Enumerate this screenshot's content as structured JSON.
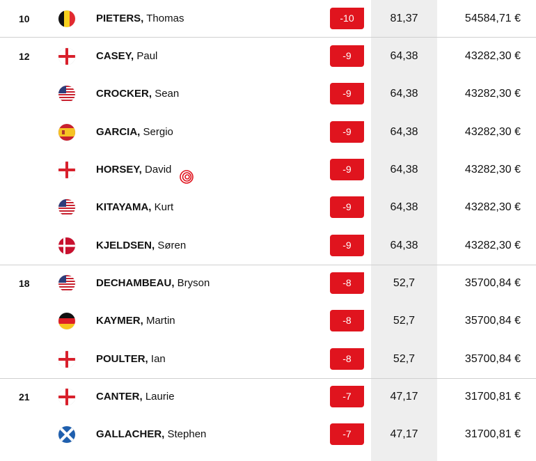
{
  "leaderboard": {
    "rows": [
      {
        "pos": "10",
        "flag": "belgium-flag-icon",
        "last": "PIETERS,",
        "first": "Thomas",
        "score": "-10",
        "points": "81,37",
        "money": "54584,71 €"
      },
      {
        "pos": "12",
        "flag": "england-flag-icon",
        "last": "CASEY,",
        "first": "Paul",
        "score": "-9",
        "points": "64,38",
        "money": "43282,30 €"
      },
      {
        "pos": "",
        "flag": "usa-flag-icon",
        "last": "CROCKER,",
        "first": "Sean",
        "score": "-9",
        "points": "64,38",
        "money": "43282,30 €"
      },
      {
        "pos": "",
        "flag": "spain-flag-icon",
        "last": "GARCIA,",
        "first": "Sergio",
        "score": "-9",
        "points": "64,38",
        "money": "43282,30 €"
      },
      {
        "pos": "",
        "flag": "england-flag-icon",
        "last": "HORSEY,",
        "first": "David",
        "score": "-9",
        "points": "64,38",
        "money": "43282,30 €",
        "badge": "target-swirl-icon"
      },
      {
        "pos": "",
        "flag": "usa-flag-icon",
        "last": "KITAYAMA,",
        "first": "Kurt",
        "score": "-9",
        "points": "64,38",
        "money": "43282,30 €"
      },
      {
        "pos": "",
        "flag": "denmark-flag-icon",
        "last": "KJELDSEN,",
        "first": "Søren",
        "score": "-9",
        "points": "64,38",
        "money": "43282,30 €"
      },
      {
        "pos": "18",
        "flag": "usa-flag-icon",
        "last": "DECHAMBEAU,",
        "first": "Bryson",
        "score": "-8",
        "points": "52,7",
        "money": "35700,84 €"
      },
      {
        "pos": "",
        "flag": "germany-flag-icon",
        "last": "KAYMER,",
        "first": "Martin",
        "score": "-8",
        "points": "52,7",
        "money": "35700,84 €"
      },
      {
        "pos": "",
        "flag": "england-flag-icon",
        "last": "POULTER,",
        "first": "Ian",
        "score": "-8",
        "points": "52,7",
        "money": "35700,84 €"
      },
      {
        "pos": "21",
        "flag": "england-flag-icon",
        "last": "CANTER,",
        "first": "Laurie",
        "score": "-7",
        "points": "47,17",
        "money": "31700,81 €"
      },
      {
        "pos": "",
        "flag": "scotland-flag-icon",
        "last": "GALLACHER,",
        "first": "Stephen",
        "score": "-7",
        "points": "47,17",
        "money": "31700,81 €"
      }
    ]
  },
  "colors": {
    "score_badge": "#e0141e",
    "points_band": "#eeeeee",
    "divider": "#cfcfcf"
  }
}
